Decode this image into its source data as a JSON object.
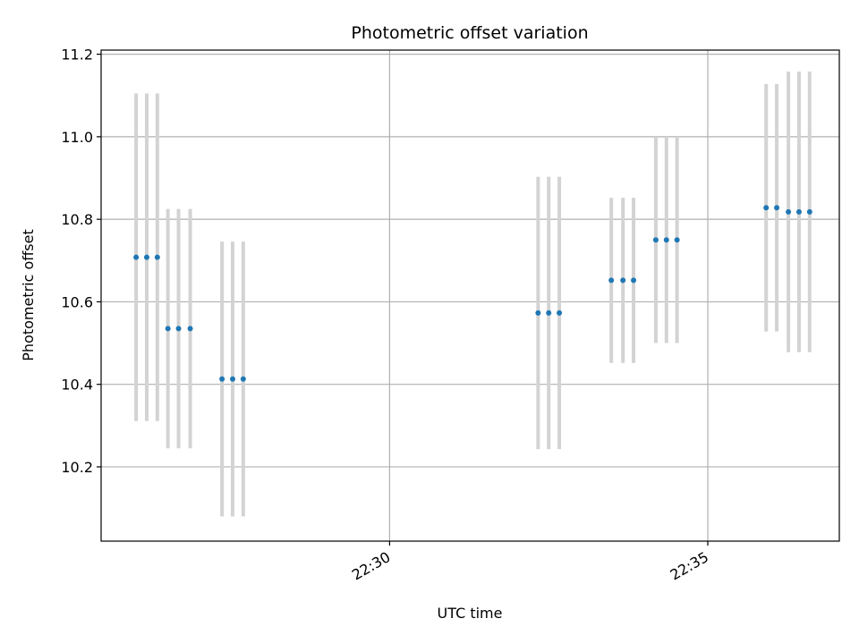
{
  "chart_data": {
    "type": "scatter",
    "title": "Photometric offset variation",
    "xlabel": "UTC time",
    "ylabel": "Photometric offset",
    "x_ticks": [
      "22:30",
      "22:35"
    ],
    "y_ticks": [
      "10.2",
      "10.4",
      "10.6",
      "10.8",
      "11.0",
      "11.2"
    ],
    "ylim": [
      10.02,
      11.21
    ],
    "xlim": [
      "22:25:28",
      "22:37:04"
    ],
    "grid": true,
    "colors": {
      "point": "#1f77b4",
      "errorbar": "#d3d3d3",
      "grid": "#b0b0b0"
    },
    "points": [
      {
        "x": "22:26:01",
        "y": 10.708,
        "err": 0.397
      },
      {
        "x": "22:26:11",
        "y": 10.708,
        "err": 0.397
      },
      {
        "x": "22:26:21",
        "y": 10.708,
        "err": 0.397
      },
      {
        "x": "22:26:31",
        "y": 10.535,
        "err": 0.29
      },
      {
        "x": "22:26:41",
        "y": 10.535,
        "err": 0.29
      },
      {
        "x": "22:26:52",
        "y": 10.535,
        "err": 0.29
      },
      {
        "x": "22:27:22",
        "y": 10.413,
        "err": 0.333
      },
      {
        "x": "22:27:32",
        "y": 10.413,
        "err": 0.333
      },
      {
        "x": "22:27:42",
        "y": 10.413,
        "err": 0.333
      },
      {
        "x": "22:32:20",
        "y": 10.573,
        "err": 0.33
      },
      {
        "x": "22:32:30",
        "y": 10.573,
        "err": 0.33
      },
      {
        "x": "22:32:40",
        "y": 10.573,
        "err": 0.33
      },
      {
        "x": "22:33:29",
        "y": 10.652,
        "err": 0.2
      },
      {
        "x": "22:33:40",
        "y": 10.652,
        "err": 0.2
      },
      {
        "x": "22:33:50",
        "y": 10.652,
        "err": 0.2
      },
      {
        "x": "22:34:11",
        "y": 10.75,
        "err": 0.25
      },
      {
        "x": "22:34:21",
        "y": 10.75,
        "err": 0.25
      },
      {
        "x": "22:34:31",
        "y": 10.75,
        "err": 0.25
      },
      {
        "x": "22:35:55",
        "y": 10.828,
        "err": 0.3
      },
      {
        "x": "22:36:05",
        "y": 10.828,
        "err": 0.3
      },
      {
        "x": "22:36:16",
        "y": 10.818,
        "err": 0.34
      },
      {
        "x": "22:36:26",
        "y": 10.818,
        "err": 0.34
      },
      {
        "x": "22:36:36",
        "y": 10.818,
        "err": 0.34
      }
    ]
  }
}
